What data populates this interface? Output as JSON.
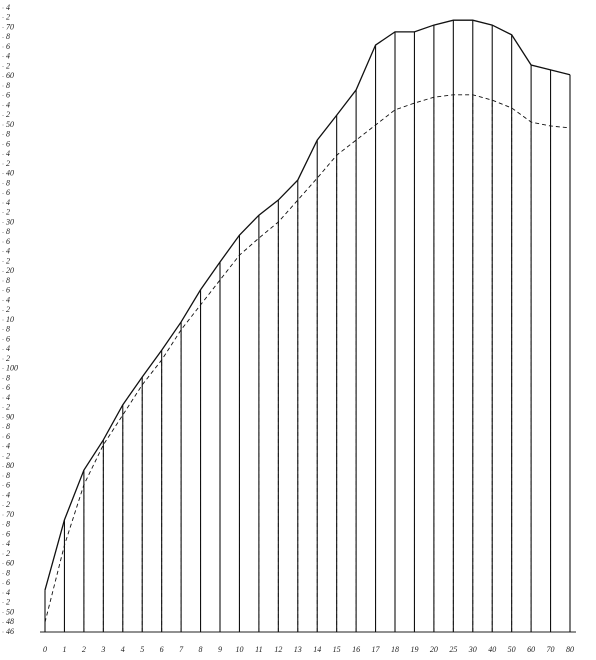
{
  "chart_data": {
    "type": "line",
    "categories": [
      "0",
      "1",
      "2",
      "3",
      "4",
      "5",
      "6",
      "7",
      "8",
      "9",
      "10",
      "11",
      "12",
      "13",
      "14",
      "15",
      "16",
      "17",
      "18",
      "19",
      "20",
      "25",
      "30",
      "40",
      "50",
      "60",
      "70",
      "80"
    ],
    "series": [
      {
        "color": "#111111",
        "dash": false,
        "values": [
          54.6,
          69,
          79.2,
          85.4,
          92.6,
          98.3,
          103.8,
          109.6,
          116.2,
          121.9,
          127.4,
          131.5,
          134.6,
          138.7,
          146.9,
          152,
          157.2,
          166.4,
          169.1,
          169.1,
          170.5,
          171.5,
          171.5,
          170.5,
          168.5,
          162.3,
          161.3,
          160.3
        ]
      },
      {
        "color": "#111111",
        "dash": true,
        "values": [
          48,
          63.8,
          76.2,
          84.4,
          90.5,
          96.7,
          101.8,
          108,
          113.1,
          118.2,
          123.3,
          126.8,
          130.1,
          134.6,
          139.1,
          143.8,
          146.9,
          150,
          153.1,
          154.5,
          155.7,
          156.2,
          156.2,
          155.1,
          153.5,
          150.6,
          149.8,
          149.4
        ]
      }
    ],
    "ylim": [
      46,
      174
    ],
    "yticks": [
      46,
      48,
      50,
      {
        "value": 52,
        "label": "2"
      },
      {
        "value": 54,
        "label": "4"
      },
      {
        "value": 56,
        "label": "6"
      },
      {
        "value": 58,
        "label": "8"
      },
      60,
      {
        "value": 62,
        "label": "2"
      },
      {
        "value": 64,
        "label": "4"
      },
      {
        "value": 66,
        "label": "6"
      },
      {
        "value": 68,
        "label": "8"
      },
      70,
      {
        "value": 72,
        "label": "2"
      },
      {
        "value": 74,
        "label": "4"
      },
      {
        "value": 76,
        "label": "6"
      },
      {
        "value": 78,
        "label": "8"
      },
      80,
      {
        "value": 82,
        "label": "2"
      },
      {
        "value": 84,
        "label": "4"
      },
      {
        "value": 86,
        "label": "6"
      },
      {
        "value": 88,
        "label": "8"
      },
      90,
      {
        "value": 92,
        "label": "2"
      },
      {
        "value": 94,
        "label": "4"
      },
      {
        "value": 96,
        "label": "6"
      },
      {
        "value": 98,
        "label": "8"
      },
      100,
      {
        "value": 102,
        "label": "2"
      },
      {
        "value": 104,
        "label": "4"
      },
      {
        "value": 106,
        "label": "6"
      },
      {
        "value": 108,
        "label": "8"
      },
      {
        "value": 110,
        "label": "10"
      },
      {
        "value": 112,
        "label": "2"
      },
      {
        "value": 114,
        "label": "4"
      },
      {
        "value": 116,
        "label": "6"
      },
      {
        "value": 118,
        "label": "8"
      },
      {
        "value": 120,
        "label": "20"
      },
      {
        "value": 122,
        "label": "2"
      },
      {
        "value": 124,
        "label": "4"
      },
      {
        "value": 126,
        "label": "6"
      },
      {
        "value": 128,
        "label": "8"
      },
      {
        "value": 130,
        "label": "30"
      },
      {
        "value": 132,
        "label": "2"
      },
      {
        "value": 134,
        "label": "4"
      },
      {
        "value": 136,
        "label": "6"
      },
      {
        "value": 138,
        "label": "8"
      },
      {
        "value": 140,
        "label": "40"
      },
      {
        "value": 142,
        "label": "2"
      },
      {
        "value": 144,
        "label": "4"
      },
      {
        "value": 146,
        "label": "6"
      },
      {
        "value": 148,
        "label": "8"
      },
      {
        "value": 150,
        "label": "50"
      },
      {
        "value": 152,
        "label": "2"
      },
      {
        "value": 154,
        "label": "4"
      },
      {
        "value": 156,
        "label": "6"
      },
      {
        "value": 158,
        "label": "8"
      },
      {
        "value": 160,
        "label": "60"
      },
      {
        "value": 162,
        "label": "2"
      },
      {
        "value": 164,
        "label": "4"
      },
      {
        "value": 166,
        "label": "6"
      },
      {
        "value": 168,
        "label": "8"
      },
      {
        "value": 170,
        "label": "70"
      },
      {
        "value": 172,
        "label": "2"
      },
      {
        "value": 174,
        "label": "4"
      }
    ],
    "grid": false
  }
}
